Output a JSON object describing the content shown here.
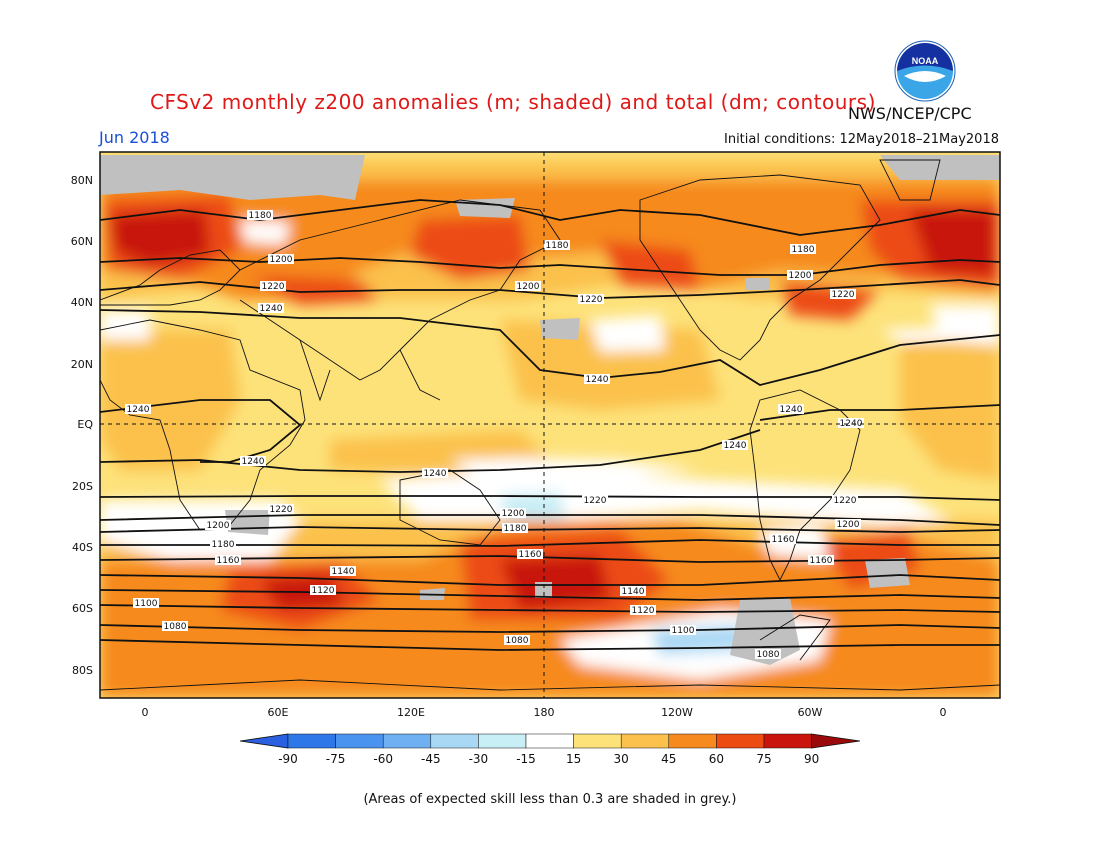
{
  "title": "CFSv2 monthly z200 anomalies (m; shaded) and total (dm; contours)",
  "valid_month": "Jun 2018",
  "agency": "NWS/NCEP/CPC",
  "initial_conditions": "Initial conditions: 12May2018–21May2018",
  "logo": {
    "text": "NOAA",
    "icon": "noaa-logo"
  },
  "footnote": "(Areas of expected skill less than 0.3 are shaded in grey.)",
  "axes": {
    "lat_labels": [
      "80N",
      "60N",
      "40N",
      "20N",
      "EQ",
      "20S",
      "40S",
      "60S",
      "80S"
    ],
    "lon_labels": [
      "0",
      "60E",
      "120E",
      "180",
      "120W",
      "60W",
      "0"
    ]
  },
  "colorbar": {
    "levels": [
      "-90",
      "-75",
      "-60",
      "-45",
      "-30",
      "-15",
      "15",
      "30",
      "45",
      "60",
      "75",
      "90"
    ],
    "colors": [
      "#2a5fe0",
      "#2e77e8",
      "#4a93ef",
      "#6fb0f3",
      "#a9d8f4",
      "#c8eef6",
      "#ffffff",
      "#fde27a",
      "#fbc14c",
      "#f68a1f",
      "#ec4b12",
      "#c8140c",
      "#9b0a0a"
    ]
  },
  "contours": [
    {
      "label": "1180",
      "pos": "north-top"
    },
    {
      "label": "1200",
      "pos": "north"
    },
    {
      "label": "1220",
      "pos": "north"
    },
    {
      "label": "1240",
      "pos": "north"
    },
    {
      "label": "1240",
      "pos": "equator"
    },
    {
      "label": "1240",
      "pos": "south"
    },
    {
      "label": "1220",
      "pos": "south"
    },
    {
      "label": "1200",
      "pos": "south"
    },
    {
      "label": "1180",
      "pos": "south"
    },
    {
      "label": "1160",
      "pos": "south"
    },
    {
      "label": "1140",
      "pos": "south"
    },
    {
      "label": "1120",
      "pos": "south"
    },
    {
      "label": "1100",
      "pos": "south"
    },
    {
      "label": "1080",
      "pos": "south"
    }
  ]
}
